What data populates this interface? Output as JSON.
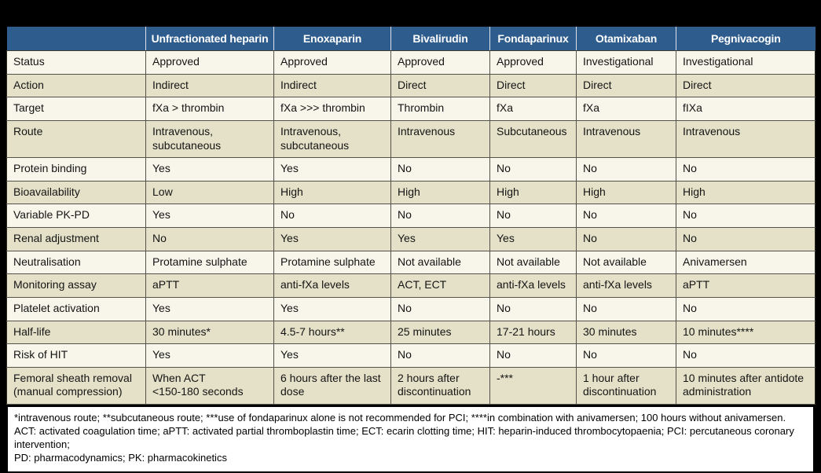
{
  "colors": {
    "page_background": "#000000",
    "header_background": "#2e5c8d",
    "header_text": "#ffffff",
    "row_light": "#f8f5ea",
    "row_dark": "#e5e1c8",
    "grid_line": "#54524a",
    "footnote_background": "#ffffff",
    "body_text": "#141414"
  },
  "table": {
    "header": [
      "",
      "Unfractionated heparin",
      "Enoxaparin",
      "Bivalirudin",
      "Fondaparinux",
      "Otamixaban",
      "Pegnivacogin"
    ],
    "rows": [
      {
        "label": "Status",
        "values": [
          "Approved",
          "Approved",
          "Approved",
          "Approved",
          "Investigational",
          "Investigational"
        ]
      },
      {
        "label": "Action",
        "values": [
          "Indirect",
          "Indirect",
          "Direct",
          "Direct",
          "Direct",
          "Direct"
        ]
      },
      {
        "label": "Target",
        "values": [
          "fXa > thrombin",
          "fXa >>> thrombin",
          "Thrombin",
          "fXa",
          "fXa",
          "fIXa"
        ]
      },
      {
        "label": "Route",
        "values": [
          "Intravenous,\nsubcutaneous",
          "Intravenous,\nsubcutaneous",
          "Intravenous",
          "Subcutaneous",
          "Intravenous",
          "Intravenous"
        ]
      },
      {
        "label": "Protein binding",
        "values": [
          "Yes",
          "Yes",
          "No",
          "No",
          "No",
          "No"
        ]
      },
      {
        "label": "Bioavailability",
        "values": [
          "Low",
          "High",
          "High",
          "High",
          "High",
          "High"
        ]
      },
      {
        "label": "Variable PK-PD",
        "values": [
          "Yes",
          "No",
          "No",
          "No",
          "No",
          "No"
        ]
      },
      {
        "label": "Renal adjustment",
        "values": [
          "No",
          "Yes",
          "Yes",
          "Yes",
          "No",
          "No"
        ]
      },
      {
        "label": "Neutralisation",
        "values": [
          "Protamine sulphate",
          "Protamine sulphate",
          "Not available",
          "Not available",
          "Not available",
          "Anivamersen"
        ]
      },
      {
        "label": "Monitoring assay",
        "values": [
          "aPTT",
          "anti-fXa levels",
          "ACT, ECT",
          "anti-fXa levels",
          "anti-fXa levels",
          "aPTT"
        ]
      },
      {
        "label": "Platelet activation",
        "values": [
          "Yes",
          "Yes",
          "No",
          "No",
          "No",
          "No"
        ]
      },
      {
        "label": "Half-life",
        "values": [
          "30 minutes*",
          "4.5-7 hours**",
          "25 minutes",
          "17-21 hours",
          "30 minutes",
          "10 minutes****"
        ]
      },
      {
        "label": "Risk of HIT",
        "values": [
          "Yes",
          "Yes",
          "No",
          "No",
          "No",
          "No"
        ]
      },
      {
        "label": "Femoral sheath removal\n(manual compression)",
        "values": [
          "When ACT\n<150-180 seconds",
          "6 hours after the last\ndose",
          "2 hours after\ndiscontinuation",
          "-***",
          "1 hour after\ndiscontinuation",
          "10 minutes after antidote\nadministration"
        ]
      }
    ]
  },
  "footnote": "*intravenous route; **subcutaneous route; ***use of fondaparinux alone is not recommended for PCI; ****in combination with anivamersen; 100 hours without anivamersen. ACT: activated coagulation time; aPTT: activated partial thromboplastin time; ECT: ecarin clotting time; HIT: heparin-induced thrombocytopaenia; PCI: percutaneous coronary intervention;\nPD: pharmacodynamics; PK: pharmacokinetics"
}
